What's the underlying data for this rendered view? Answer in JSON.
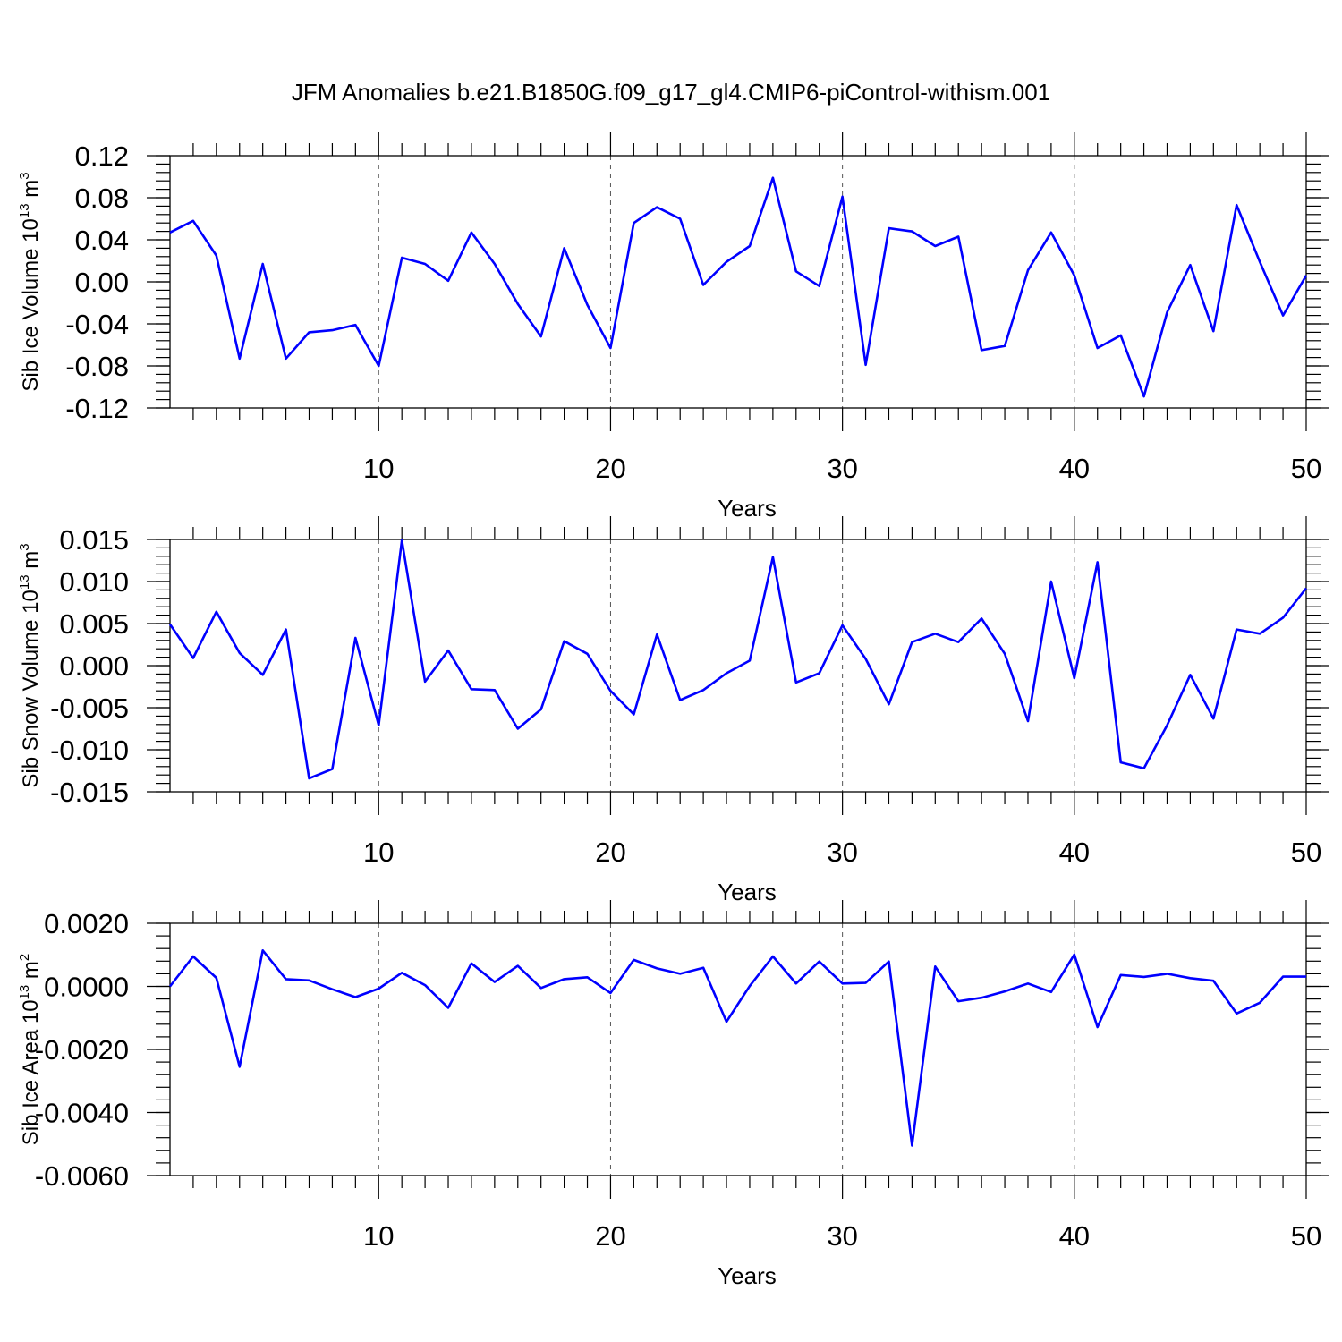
{
  "title": "JFM Anomalies b.e21.B1850G.f09_g17_gl4.CMIP6-piControl-withism.001",
  "colors": {
    "series": "#0000ff",
    "frame": "#000000",
    "grid": "#555555",
    "background": "#ffffff"
  },
  "chart_data": [
    {
      "type": "line",
      "ylabel": {
        "base": "Sib Ice Volume 10",
        "exp": "13",
        "unit": " m",
        "unit_exp": "3"
      },
      "xlabel": "Years",
      "xlim": [
        1,
        50
      ],
      "ylim": [
        -0.12,
        0.12
      ],
      "x_ticks": [
        10,
        20,
        30,
        40,
        50
      ],
      "y_ticks": [
        -0.12,
        -0.08,
        -0.04,
        0.0,
        0.04,
        0.08,
        0.12
      ],
      "y_tick_labels": [
        "-0.12",
        "-0.08",
        "-0.04",
        "0.00",
        "0.04",
        "0.08",
        "0.12"
      ],
      "y_minor_step": 0.008,
      "grid": "vertical dashed at major x ticks",
      "x": [
        1,
        2,
        3,
        4,
        5,
        6,
        7,
        8,
        9,
        10,
        11,
        12,
        13,
        14,
        15,
        16,
        17,
        18,
        19,
        20,
        21,
        22,
        23,
        24,
        25,
        26,
        27,
        28,
        29,
        30,
        31,
        32,
        33,
        34,
        35,
        36,
        37,
        38,
        39,
        40,
        41,
        42,
        43,
        44,
        45,
        46,
        47,
        48,
        49,
        50
      ],
      "values": [
        0.047,
        0.058,
        0.025,
        -0.073,
        0.017,
        -0.073,
        -0.048,
        -0.046,
        -0.041,
        -0.08,
        0.023,
        0.017,
        0.001,
        0.047,
        0.017,
        -0.021,
        -0.052,
        0.032,
        -0.022,
        -0.063,
        0.056,
        0.071,
        0.06,
        -0.003,
        0.019,
        0.034,
        0.099,
        0.01,
        -0.004,
        0.081,
        -0.079,
        0.051,
        0.048,
        0.034,
        0.043,
        -0.065,
        -0.061,
        0.011,
        0.047,
        0.006,
        -0.063,
        -0.051,
        -0.109,
        -0.029,
        0.016,
        -0.047,
        0.073,
        0.019,
        -0.032,
        0.006
      ]
    },
    {
      "type": "line",
      "ylabel": {
        "base": "Sib Snow Volume 10",
        "exp": "13",
        "unit": " m",
        "unit_exp": "3"
      },
      "xlabel": "Years",
      "xlim": [
        1,
        50
      ],
      "ylim": [
        -0.015,
        0.015
      ],
      "x_ticks": [
        10,
        20,
        30,
        40,
        50
      ],
      "y_ticks": [
        -0.015,
        -0.01,
        -0.005,
        0.0,
        0.005,
        0.01,
        0.015
      ],
      "y_tick_labels": [
        "-0.015",
        "-0.010",
        "-0.005",
        "0.000",
        "0.005",
        "0.010",
        "0.015"
      ],
      "y_minor_step": 0.001,
      "grid": "vertical dashed at major x ticks",
      "x": [
        1,
        2,
        3,
        4,
        5,
        6,
        7,
        8,
        9,
        10,
        11,
        12,
        13,
        14,
        15,
        16,
        17,
        18,
        19,
        20,
        21,
        22,
        23,
        24,
        25,
        26,
        27,
        28,
        29,
        30,
        31,
        32,
        33,
        34,
        35,
        36,
        37,
        38,
        39,
        40,
        41,
        42,
        43,
        44,
        45,
        46,
        47,
        48,
        49,
        50
      ],
      "values": [
        0.0049,
        0.0009,
        0.0064,
        0.0015,
        -0.0011,
        0.0043,
        -0.0134,
        -0.0123,
        0.0033,
        -0.0071,
        0.0149,
        -0.0019,
        0.0018,
        -0.0028,
        -0.0029,
        -0.0075,
        -0.0052,
        0.0029,
        0.0014,
        -0.003,
        -0.0058,
        0.0037,
        -0.0041,
        -0.0029,
        -0.0009,
        0.0006,
        0.0129,
        -0.002,
        -0.0009,
        0.0048,
        0.0008,
        -0.0046,
        0.0028,
        0.0038,
        0.0028,
        0.0056,
        0.0014,
        -0.0066,
        0.01,
        -0.0015,
        0.0123,
        -0.0115,
        -0.0122,
        -0.0071,
        -0.0011,
        -0.0063,
        0.0043,
        0.0038,
        0.0057,
        0.0092
      ]
    },
    {
      "type": "line",
      "ylabel": {
        "base": "Sib Ice Area 10",
        "exp": "13",
        "unit": " m",
        "unit_exp": "2"
      },
      "xlabel": "Years",
      "xlim": [
        1,
        50
      ],
      "ylim": [
        -0.006,
        0.002
      ],
      "x_ticks": [
        10,
        20,
        30,
        40,
        50
      ],
      "y_ticks": [
        -0.006,
        -0.004,
        -0.002,
        0.0,
        0.002
      ],
      "y_tick_labels": [
        "-0.0060",
        "-0.0040",
        "-0.0020",
        "0.0000",
        "0.0020"
      ],
      "y_minor_step": 0.0004,
      "grid": "vertical dashed at major x ticks",
      "x": [
        1,
        2,
        3,
        4,
        5,
        6,
        7,
        8,
        9,
        10,
        11,
        12,
        13,
        14,
        15,
        16,
        17,
        18,
        19,
        20,
        21,
        22,
        23,
        24,
        25,
        26,
        27,
        28,
        29,
        30,
        31,
        32,
        33,
        34,
        35,
        36,
        37,
        38,
        39,
        40,
        41,
        42,
        43,
        44,
        45,
        46,
        47,
        48,
        49,
        50
      ],
      "values": [
        0.0,
        0.00095,
        0.00027,
        -0.00255,
        0.00114,
        0.00023,
        0.00019,
        -9e-05,
        -0.00034,
        -7e-05,
        0.00043,
        4e-05,
        -0.00068,
        0.00073,
        0.00014,
        0.00065,
        -5e-05,
        0.00023,
        0.00029,
        -0.00021,
        0.00084,
        0.00057,
        0.0004,
        0.00059,
        -0.00112,
        1e-05,
        0.00095,
        9e-05,
        0.00079,
        9e-05,
        0.00011,
        0.00079,
        -0.00505,
        0.00063,
        -0.00047,
        -0.00036,
        -0.00016,
        9e-05,
        -0.00018,
        0.00101,
        -0.00129,
        0.00036,
        0.0003,
        0.0004,
        0.00026,
        0.00018,
        -0.00086,
        -0.00052,
        0.00031,
        0.00031
      ]
    }
  ]
}
